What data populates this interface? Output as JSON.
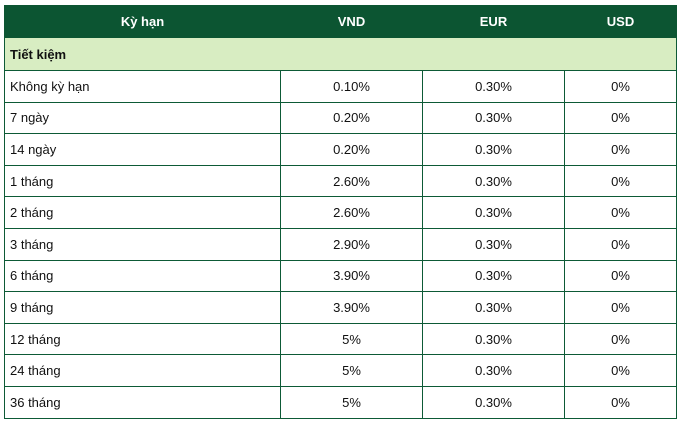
{
  "table": {
    "headers": {
      "term": "Kỳ hạn",
      "vnd": "VND",
      "eur": "EUR",
      "usd": "USD"
    },
    "group_label": "Tiết kiệm",
    "rows": [
      {
        "term": "Không kỳ hạn",
        "vnd": "0.10%",
        "eur": "0.30%",
        "usd": "0%"
      },
      {
        "term": "7 ngày",
        "vnd": "0.20%",
        "eur": "0.30%",
        "usd": "0%"
      },
      {
        "term": "14 ngày",
        "vnd": "0.20%",
        "eur": "0.30%",
        "usd": "0%"
      },
      {
        "term": "1 tháng",
        "vnd": "2.60%",
        "eur": "0.30%",
        "usd": "0%"
      },
      {
        "term": "2 tháng",
        "vnd": "2.60%",
        "eur": "0.30%",
        "usd": "0%"
      },
      {
        "term": "3 tháng",
        "vnd": "2.90%",
        "eur": "0.30%",
        "usd": "0%"
      },
      {
        "term": "6 tháng",
        "vnd": "3.90%",
        "eur": "0.30%",
        "usd": "0%"
      },
      {
        "term": "9 tháng",
        "vnd": "3.90%",
        "eur": "0.30%",
        "usd": "0%"
      },
      {
        "term": "12 tháng",
        "vnd": "5%",
        "eur": "0.30%",
        "usd": "0%"
      },
      {
        "term": "24 tháng",
        "vnd": "5%",
        "eur": "0.30%",
        "usd": "0%"
      },
      {
        "term": "36 tháng",
        "vnd": "5%",
        "eur": "0.30%",
        "usd": "0%"
      }
    ]
  },
  "colors": {
    "header_bg": "#0c5532",
    "group_bg": "#d8edc2",
    "border": "#0d5a36"
  }
}
